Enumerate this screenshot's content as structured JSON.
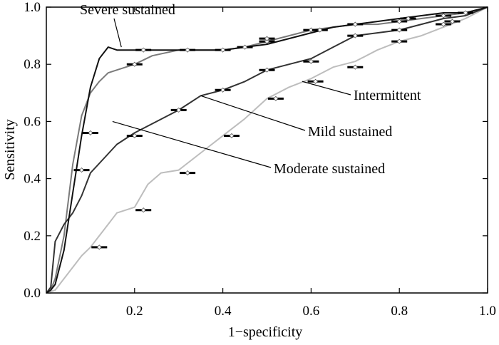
{
  "chart_data": {
    "type": "line",
    "title": "",
    "xlabel": "1−specificity",
    "ylabel": "Sensitivity",
    "xlim": [
      0,
      1
    ],
    "ylim": [
      0,
      1
    ],
    "x_ticks": [
      "0.2",
      "0.4",
      "0.6",
      "0.8",
      "1.0"
    ],
    "y_ticks": [
      "0.0",
      "0.2",
      "0.4",
      "0.6",
      "0.8",
      "1.0"
    ],
    "grid": false,
    "series": [
      {
        "name": "Severe sustained",
        "color": "#111111",
        "x": [
          0,
          0.01,
          0.02,
          0.04,
          0.06,
          0.08,
          0.1,
          0.12,
          0.14,
          0.16,
          0.2,
          0.25,
          0.3,
          0.35,
          0.4,
          0.45,
          0.5,
          0.55,
          0.6,
          0.65,
          0.7,
          0.75,
          0.8,
          0.85,
          0.9,
          0.95,
          1.0
        ],
        "y": [
          0,
          0.01,
          0.03,
          0.15,
          0.35,
          0.55,
          0.72,
          0.82,
          0.86,
          0.85,
          0.85,
          0.85,
          0.85,
          0.85,
          0.85,
          0.86,
          0.87,
          0.89,
          0.91,
          0.93,
          0.94,
          0.95,
          0.96,
          0.97,
          0.98,
          0.98,
          1.0
        ],
        "markers_x": [
          0.22,
          0.32,
          0.45,
          0.5,
          0.6,
          0.7,
          0.82,
          0.95
        ],
        "markers_y": [
          0.85,
          0.85,
          0.86,
          0.88,
          0.92,
          0.94,
          0.96,
          0.98
        ]
      },
      {
        "name": "Moderate sustained",
        "color": "#7a7a7a",
        "x": [
          0,
          0.01,
          0.02,
          0.04,
          0.06,
          0.08,
          0.1,
          0.12,
          0.14,
          0.16,
          0.18,
          0.2,
          0.24,
          0.3,
          0.35,
          0.4,
          0.45,
          0.5,
          0.55,
          0.6,
          0.65,
          0.7,
          0.75,
          0.8,
          0.85,
          0.9,
          0.95,
          1.0
        ],
        "y": [
          0,
          0.01,
          0.05,
          0.2,
          0.45,
          0.62,
          0.7,
          0.74,
          0.77,
          0.78,
          0.79,
          0.8,
          0.83,
          0.85,
          0.85,
          0.85,
          0.86,
          0.88,
          0.9,
          0.92,
          0.93,
          0.94,
          0.94,
          0.95,
          0.96,
          0.97,
          0.98,
          1.0
        ],
        "markers_x": [
          0.2,
          0.4,
          0.5,
          0.62,
          0.8,
          0.9
        ],
        "markers_y": [
          0.8,
          0.85,
          0.89,
          0.92,
          0.95,
          0.97
        ]
      },
      {
        "name": "Mild sustained",
        "color": "#333333",
        "x": [
          0,
          0.01,
          0.02,
          0.04,
          0.06,
          0.08,
          0.1,
          0.13,
          0.16,
          0.2,
          0.25,
          0.3,
          0.35,
          0.4,
          0.45,
          0.5,
          0.55,
          0.6,
          0.65,
          0.7,
          0.75,
          0.8,
          0.85,
          0.9,
          0.95,
          1.0
        ],
        "y": [
          0,
          0.02,
          0.18,
          0.24,
          0.28,
          0.34,
          0.42,
          0.47,
          0.52,
          0.56,
          0.6,
          0.64,
          0.69,
          0.71,
          0.74,
          0.78,
          0.8,
          0.82,
          0.86,
          0.9,
          0.91,
          0.92,
          0.94,
          0.96,
          0.97,
          1.0
        ],
        "markers_x": [
          0.08,
          0.1,
          0.2,
          0.3,
          0.4,
          0.5,
          0.6,
          0.7,
          0.8,
          0.9
        ],
        "markers_y": [
          0.43,
          0.56,
          0.55,
          0.64,
          0.71,
          0.78,
          0.81,
          0.9,
          0.92,
          0.94
        ]
      },
      {
        "name": "Intermittent",
        "color": "#bdbdbd",
        "x": [
          0,
          0.02,
          0.05,
          0.08,
          0.1,
          0.13,
          0.16,
          0.18,
          0.2,
          0.23,
          0.26,
          0.3,
          0.35,
          0.4,
          0.45,
          0.5,
          0.55,
          0.6,
          0.65,
          0.7,
          0.75,
          0.8,
          0.85,
          0.9,
          0.95,
          1.0
        ],
        "y": [
          0,
          0.01,
          0.07,
          0.13,
          0.16,
          0.22,
          0.28,
          0.29,
          0.3,
          0.38,
          0.42,
          0.43,
          0.49,
          0.55,
          0.61,
          0.68,
          0.72,
          0.75,
          0.79,
          0.81,
          0.85,
          0.88,
          0.9,
          0.93,
          0.96,
          1.0
        ],
        "markers_x": [
          0.12,
          0.22,
          0.32,
          0.42,
          0.52,
          0.61,
          0.7,
          0.8,
          0.92
        ],
        "markers_y": [
          0.16,
          0.29,
          0.42,
          0.55,
          0.68,
          0.74,
          0.79,
          0.88,
          0.95
        ]
      }
    ],
    "annotations": [
      {
        "text": "Severe sustained",
        "target_x": 0.17,
        "target_y": 0.86
      },
      {
        "text": "Intermittent",
        "target_x": 0.58,
        "target_y": 0.74
      },
      {
        "text": "Mild sustained",
        "target_x": 0.35,
        "target_y": 0.69
      },
      {
        "text": "Moderate sustained",
        "target_x": 0.15,
        "target_y": 0.6
      }
    ]
  }
}
